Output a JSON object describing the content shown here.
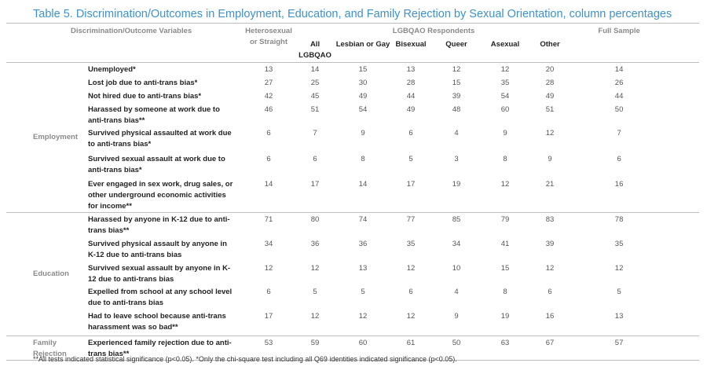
{
  "title": "Table 5. Discrimination/Outcomes in Employment, Education, and Family Rejection by Sexual Orientation, column percentages",
  "header": {
    "variables": "Discrimination/Outcome Variables",
    "hetero": "Heterosexual or Straight",
    "lgbqao_group": "LGBQAO Respondents",
    "full": "Full Sample",
    "subcolumns": [
      "All LGBQAO",
      "Lesbian or Gay",
      "Bisexual",
      "Queer",
      "Asexual",
      "Other"
    ]
  },
  "sections": [
    {
      "group": "Employment",
      "rows": [
        {
          "label": "Unemployed*",
          "values": [
            "13",
            "14",
            "15",
            "13",
            "12",
            "12",
            "20",
            "14"
          ]
        },
        {
          "label": "Lost job due to anti-trans bias*",
          "values": [
            "27",
            "25",
            "30",
            "28",
            "15",
            "35",
            "28",
            "26"
          ]
        },
        {
          "label": "Not hired due to anti-trans bias*",
          "values": [
            "42",
            "45",
            "49",
            "44",
            "39",
            "54",
            "49",
            "44"
          ]
        },
        {
          "label": "Harassed by someone at work due to anti-trans bias**",
          "values": [
            "46",
            "51",
            "54",
            "49",
            "48",
            "60",
            "51",
            "50"
          ]
        },
        {
          "label": "Survived physical assaulted at work due to anti-trans bias*",
          "values": [
            "6",
            "7",
            "9",
            "6",
            "4",
            "9",
            "12",
            "7"
          ]
        },
        {
          "label": "Survived sexual assault at work due to anti-trans bias*",
          "values": [
            "6",
            "6",
            "8",
            "5",
            "3",
            "8",
            "9",
            "6"
          ]
        },
        {
          "label": "Ever engaged in sex work, drug sales, or other underground economic activities for income**",
          "values": [
            "14",
            "17",
            "14",
            "17",
            "19",
            "12",
            "21",
            "16"
          ]
        }
      ]
    },
    {
      "group": "Education",
      "rows": [
        {
          "label": "Harassed by anyone in K-12 due to anti-trans bias**",
          "values": [
            "71",
            "80",
            "74",
            "77",
            "85",
            "79",
            "83",
            "78"
          ]
        },
        {
          "label": "Survived physical assault by anyone in K-12 due to anti-trans bias",
          "values": [
            "34",
            "36",
            "36",
            "35",
            "34",
            "41",
            "39",
            "35"
          ]
        },
        {
          "label": "Survived sexual assault by anyone in K-12 due to anti-trans bias",
          "values": [
            "12",
            "12",
            "13",
            "12",
            "10",
            "15",
            "12",
            "12"
          ]
        },
        {
          "label": "Expelled from school at any school level due to anti-trans bias",
          "values": [
            "6",
            "5",
            "5",
            "6",
            "4",
            "8",
            "6",
            "5"
          ]
        },
        {
          "label": "Had to leave school because anti-trans harassment was so bad**",
          "values": [
            "17",
            "12",
            "12",
            "12",
            "9",
            "19",
            "16",
            "13"
          ]
        }
      ]
    },
    {
      "group": "Family Rejection",
      "rows": [
        {
          "label": "Experienced family rejection due to anti-trans bias**",
          "values": [
            "53",
            "59",
            "60",
            "61",
            "50",
            "63",
            "67",
            "57"
          ]
        }
      ]
    }
  ],
  "footnote": "**All tests indicated statistical significance (p<0.05). *Only the chi-square test including all Q69 identities indicated significance (p<0.05).",
  "colors": {
    "title": "#3d92c9",
    "header": "#8a8a8a",
    "rule": "#bdbdbd"
  }
}
